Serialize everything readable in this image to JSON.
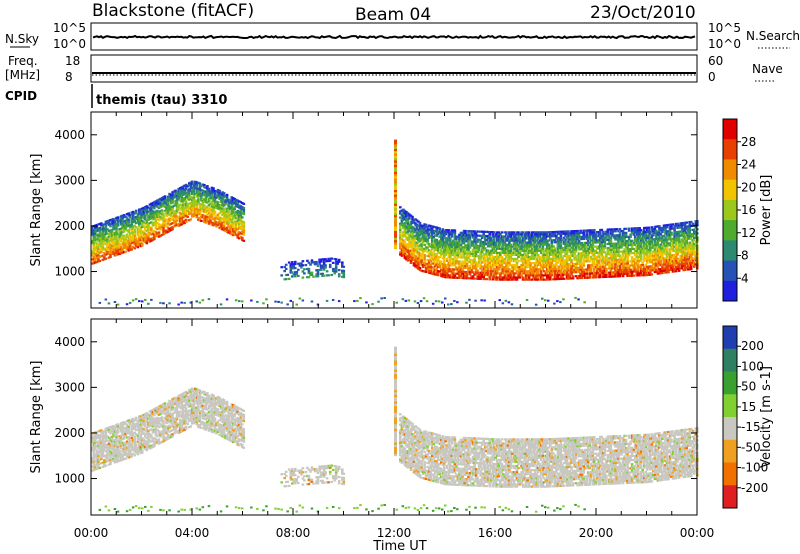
{
  "header": {
    "title": "Blackstone (fitACF)",
    "beam": "Beam 04",
    "date": "23/Oct/2010"
  },
  "panels": {
    "nsky_label": "N.Sky",
    "nsky_ticks": [
      "10^5",
      "10^0"
    ],
    "nsearch_label": "N.Search",
    "nsearch_ticks": [
      "10^5",
      "10^0"
    ],
    "freq_label": "Freq.",
    "freq_unit": "[MHz]",
    "freq_ticks": [
      "18",
      "8"
    ],
    "nave_label": "Nave",
    "nave_ticks": [
      "60",
      "0"
    ],
    "cpid_label": "CPID",
    "cpid_value": "themis (tau) 3310"
  },
  "chart_data": [
    {
      "type": "heatmap",
      "quantity": "Power",
      "ylabel": "Slant Range [km]",
      "xlabel": "Time UT",
      "x_ticks": [
        "00:00",
        "04:00",
        "08:00",
        "12:00",
        "16:00",
        "20:00",
        "00:00"
      ],
      "x_range_hours": [
        0,
        24
      ],
      "ylim": [
        200,
        4500
      ],
      "y_ticks": [
        1000,
        2000,
        3000,
        4000
      ],
      "colorbar": {
        "label": "Power [dB]",
        "ticks": [
          4,
          8,
          12,
          16,
          20,
          24,
          28
        ],
        "range": [
          0,
          31
        ],
        "colors": [
          "#1f1fe0",
          "#2553b5",
          "#2b8a70",
          "#4fab2e",
          "#9cc81e",
          "#f2c400",
          "#f08a00",
          "#e84000",
          "#e00000"
        ]
      },
      "echo_bands": [
        {
          "t": [
            0.0,
            1.0,
            2.0,
            3.0,
            4.0,
            5.0,
            6.0
          ],
          "range_km": [
            1300,
            1500,
            1700,
            2000,
            2300,
            2100,
            1800
          ],
          "power_db": 26
        },
        {
          "t": [
            12.2,
            13.0,
            14.0,
            16.0,
            18.0,
            20.0,
            22.0,
            24.0
          ],
          "range_km": [
            1500,
            1150,
            1000,
            950,
            950,
            1000,
            1050,
            1200
          ],
          "power_db": 28
        },
        {
          "t": [
            7.5,
            8.5,
            9.5,
            10.0
          ],
          "range_km": [
            950,
            1000,
            1050,
            1000
          ],
          "power_db": 10
        }
      ]
    },
    {
      "type": "heatmap",
      "quantity": "Velocity",
      "ylabel": "Slant Range [km]",
      "xlabel": "Time UT",
      "x_ticks": [
        "00:00",
        "04:00",
        "08:00",
        "12:00",
        "16:00",
        "20:00",
        "00:00"
      ],
      "x_range_hours": [
        0,
        24
      ],
      "ylim": [
        200,
        4500
      ],
      "y_ticks": [
        1000,
        2000,
        3000,
        4000
      ],
      "colorbar": {
        "label": "Velocity [m s-1]",
        "ticks": [
          200,
          100,
          50,
          15,
          -15,
          -50,
          -100,
          -200
        ],
        "colors": [
          "#1f3fb0",
          "#2f7f62",
          "#3aa030",
          "#7fd030",
          "#c8c8c0",
          "#f0a020",
          "#f07000",
          "#e02020"
        ]
      },
      "dominant_velocity_ms": 0
    }
  ],
  "axis_title": "Time UT"
}
